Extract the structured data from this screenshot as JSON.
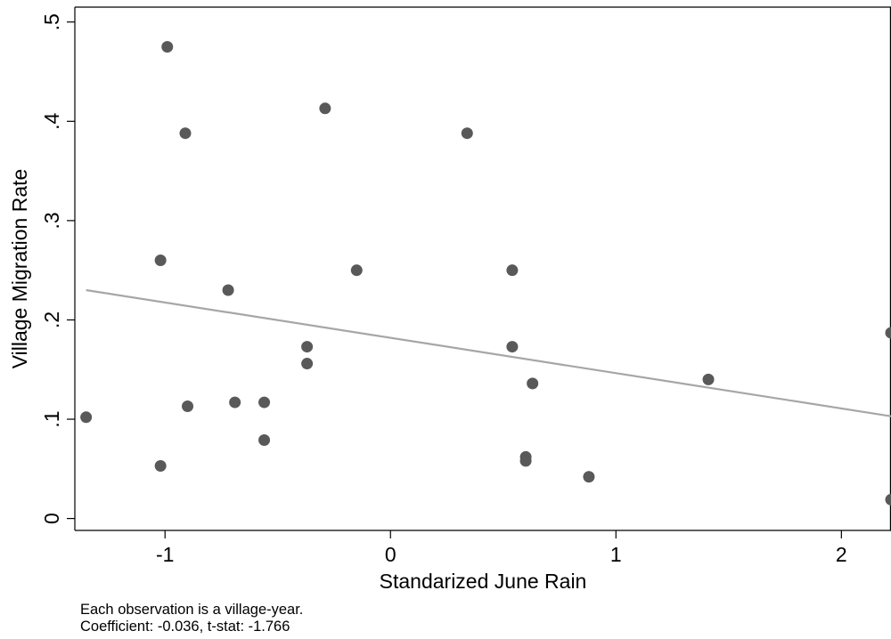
{
  "chart_data": {
    "type": "scatter",
    "xlabel": "Standarized June Rain",
    "ylabel": "Village Migration Rate",
    "xlim": [
      -1.4,
      2.22
    ],
    "ylim": [
      -0.012,
      0.515
    ],
    "x_ticks": [
      {
        "value": -1,
        "label": "-1"
      },
      {
        "value": 0,
        "label": "0"
      },
      {
        "value": 1,
        "label": "1"
      },
      {
        "value": 2,
        "label": "2"
      }
    ],
    "y_ticks": [
      {
        "value": 0,
        "label": "0"
      },
      {
        "value": 0.1,
        "label": ".1"
      },
      {
        "value": 0.2,
        "label": ".2"
      },
      {
        "value": 0.3,
        "label": ".3"
      },
      {
        "value": 0.4,
        "label": ".4"
      },
      {
        "value": 0.5,
        "label": ".5"
      }
    ],
    "points": [
      {
        "x": -1.35,
        "y": 0.102
      },
      {
        "x": -1.02,
        "y": 0.053
      },
      {
        "x": -1.02,
        "y": 0.26
      },
      {
        "x": -0.99,
        "y": 0.475
      },
      {
        "x": -0.91,
        "y": 0.388
      },
      {
        "x": -0.9,
        "y": 0.113
      },
      {
        "x": -0.72,
        "y": 0.23
      },
      {
        "x": -0.69,
        "y": 0.117
      },
      {
        "x": -0.56,
        "y": 0.117
      },
      {
        "x": -0.56,
        "y": 0.079
      },
      {
        "x": -0.37,
        "y": 0.173
      },
      {
        "x": -0.37,
        "y": 0.156
      },
      {
        "x": -0.29,
        "y": 0.413
      },
      {
        "x": -0.15,
        "y": 0.25
      },
      {
        "x": 0.34,
        "y": 0.388
      },
      {
        "x": 0.54,
        "y": 0.25
      },
      {
        "x": 0.54,
        "y": 0.173
      },
      {
        "x": 0.6,
        "y": 0.062
      },
      {
        "x": 0.6,
        "y": 0.058
      },
      {
        "x": 0.63,
        "y": 0.136
      },
      {
        "x": 0.88,
        "y": 0.042
      },
      {
        "x": 1.41,
        "y": 0.14
      },
      {
        "x": 2.22,
        "y": 0.187
      },
      {
        "x": 2.22,
        "y": 0.019
      }
    ],
    "fit_line": {
      "x": [
        -1.35,
        2.22
      ],
      "y": [
        0.23,
        0.103
      ]
    },
    "marker_color": "#595959",
    "line_color": "#a6a6a6",
    "grid": false,
    "legend": "none"
  },
  "notes": {
    "line1": "Each observation is a village-year.",
    "line2": "Coefficient: -0.036, t-stat: -1.766"
  }
}
